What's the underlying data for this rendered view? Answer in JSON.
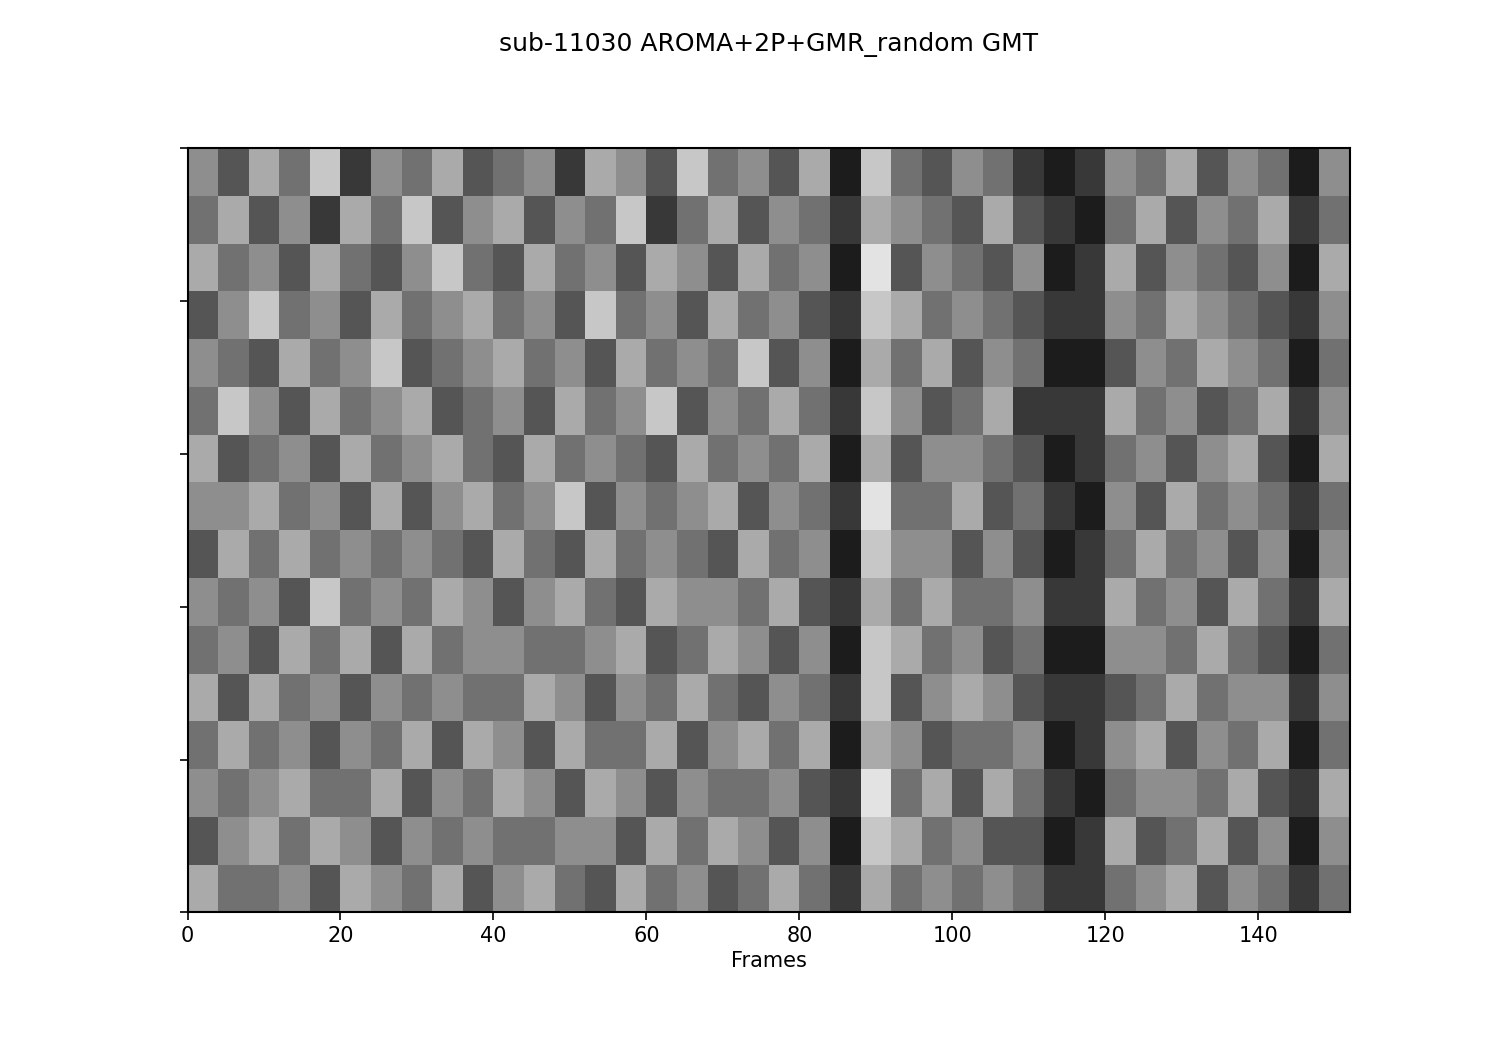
{
  "chart_data": {
    "type": "heatmap",
    "title": "sub-11030 AROMA+2P+GMR_random GMT",
    "x_label": "Frames",
    "xlim": [
      0,
      152
    ],
    "xticks": [
      0,
      20,
      40,
      60,
      80,
      100,
      120,
      140
    ],
    "ylim": [
      0,
      100
    ],
    "yticks": [
      0,
      20,
      40,
      60,
      80,
      100
    ],
    "tick_labels": "x",
    "color_range": [
      0,
      9
    ],
    "color": "gray",
    "cells": [
      [
        5,
        3,
        6,
        4,
        7,
        2,
        5,
        4,
        6,
        3,
        4,
        5,
        2,
        6,
        5,
        3,
        7,
        4,
        5,
        3,
        6,
        1,
        7,
        4,
        3,
        5,
        4,
        2,
        1,
        2,
        5,
        4,
        6,
        3,
        5,
        4,
        1,
        5
      ],
      [
        4,
        6,
        3,
        5,
        2,
        6,
        4,
        7,
        3,
        5,
        6,
        3,
        5,
        4,
        7,
        2,
        4,
        6,
        3,
        5,
        4,
        2,
        6,
        5,
        4,
        3,
        6,
        3,
        2,
        1,
        4,
        6,
        3,
        5,
        4,
        6,
        2,
        4
      ],
      [
        6,
        4,
        5,
        3,
        6,
        4,
        3,
        5,
        7,
        4,
        3,
        6,
        4,
        5,
        3,
        6,
        5,
        3,
        6,
        4,
        5,
        1,
        8,
        3,
        5,
        4,
        3,
        5,
        1,
        2,
        6,
        3,
        5,
        4,
        3,
        5,
        1,
        6
      ],
      [
        3,
        5,
        7,
        4,
        5,
        3,
        6,
        4,
        5,
        6,
        4,
        5,
        3,
        7,
        4,
        5,
        3,
        6,
        4,
        5,
        3,
        2,
        7,
        6,
        4,
        5,
        4,
        3,
        2,
        2,
        5,
        4,
        6,
        5,
        4,
        3,
        2,
        5
      ],
      [
        5,
        4,
        3,
        6,
        4,
        5,
        7,
        3,
        4,
        5,
        6,
        4,
        5,
        3,
        6,
        4,
        5,
        4,
        7,
        3,
        5,
        1,
        6,
        4,
        6,
        3,
        5,
        4,
        1,
        1,
        3,
        5,
        4,
        6,
        5,
        4,
        1,
        4
      ],
      [
        4,
        7,
        5,
        3,
        6,
        4,
        5,
        6,
        3,
        4,
        5,
        3,
        6,
        4,
        5,
        7,
        3,
        5,
        4,
        6,
        4,
        2,
        7,
        5,
        3,
        4,
        6,
        2,
        2,
        2,
        6,
        4,
        5,
        3,
        4,
        6,
        2,
        5
      ],
      [
        6,
        3,
        4,
        5,
        3,
        6,
        4,
        5,
        6,
        4,
        3,
        6,
        4,
        5,
        4,
        3,
        6,
        4,
        5,
        4,
        6,
        1,
        6,
        3,
        5,
        5,
        4,
        3,
        1,
        2,
        4,
        5,
        3,
        5,
        6,
        3,
        1,
        6
      ],
      [
        5,
        5,
        6,
        4,
        5,
        3,
        6,
        3,
        5,
        6,
        4,
        5,
        7,
        3,
        5,
        4,
        5,
        6,
        3,
        5,
        4,
        2,
        8,
        4,
        4,
        6,
        3,
        4,
        2,
        1,
        5,
        3,
        6,
        4,
        5,
        4,
        2,
        4
      ],
      [
        3,
        6,
        4,
        6,
        4,
        5,
        4,
        5,
        4,
        3,
        6,
        4,
        3,
        6,
        4,
        5,
        4,
        3,
        6,
        4,
        5,
        1,
        7,
        5,
        5,
        3,
        5,
        3,
        1,
        2,
        4,
        6,
        4,
        5,
        3,
        5,
        1,
        5
      ],
      [
        5,
        4,
        5,
        3,
        7,
        4,
        5,
        4,
        6,
        5,
        3,
        5,
        6,
        4,
        3,
        6,
        5,
        5,
        4,
        6,
        3,
        2,
        6,
        4,
        6,
        4,
        4,
        5,
        2,
        2,
        6,
        4,
        5,
        3,
        6,
        4,
        2,
        6
      ],
      [
        4,
        5,
        3,
        6,
        4,
        6,
        3,
        6,
        4,
        5,
        5,
        4,
        4,
        5,
        6,
        3,
        4,
        6,
        5,
        3,
        5,
        1,
        7,
        6,
        4,
        5,
        3,
        4,
        1,
        1,
        5,
        5,
        4,
        6,
        4,
        3,
        1,
        4
      ],
      [
        6,
        3,
        6,
        4,
        5,
        3,
        5,
        4,
        5,
        4,
        4,
        6,
        5,
        3,
        5,
        4,
        6,
        4,
        3,
        5,
        4,
        2,
        7,
        3,
        5,
        6,
        5,
        3,
        2,
        2,
        3,
        4,
        6,
        4,
        5,
        5,
        2,
        5
      ],
      [
        4,
        6,
        4,
        5,
        3,
        5,
        4,
        6,
        3,
        6,
        5,
        3,
        6,
        4,
        4,
        6,
        3,
        5,
        6,
        4,
        6,
        1,
        6,
        5,
        3,
        4,
        4,
        5,
        1,
        2,
        5,
        6,
        3,
        5,
        4,
        6,
        1,
        4
      ],
      [
        5,
        4,
        5,
        6,
        4,
        4,
        6,
        3,
        5,
        4,
        6,
        5,
        3,
        6,
        5,
        3,
        5,
        4,
        4,
        5,
        3,
        2,
        8,
        4,
        6,
        3,
        6,
        4,
        2,
        1,
        4,
        5,
        5,
        4,
        6,
        3,
        2,
        6
      ],
      [
        3,
        5,
        6,
        4,
        6,
        5,
        3,
        5,
        4,
        5,
        4,
        4,
        5,
        5,
        3,
        6,
        4,
        6,
        5,
        3,
        5,
        1,
        7,
        6,
        4,
        5,
        3,
        3,
        1,
        2,
        6,
        3,
        4,
        6,
        3,
        5,
        1,
        5
      ],
      [
        6,
        4,
        4,
        5,
        3,
        6,
        5,
        4,
        6,
        3,
        5,
        6,
        4,
        3,
        6,
        4,
        5,
        3,
        4,
        6,
        4,
        2,
        6,
        4,
        5,
        4,
        5,
        4,
        2,
        2,
        4,
        5,
        6,
        3,
        5,
        4,
        2,
        4
      ]
    ]
  }
}
